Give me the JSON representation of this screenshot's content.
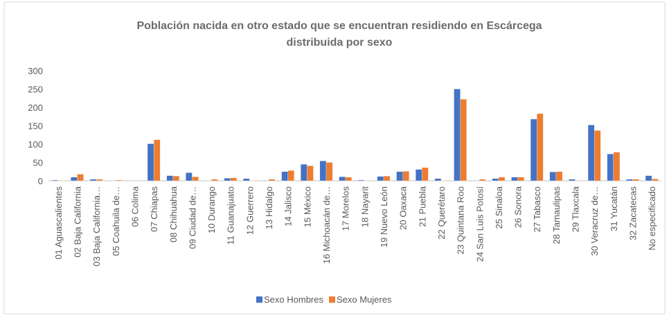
{
  "chart_data": {
    "type": "bar",
    "title": [
      "Población nacida en otro estado que se encuentran residiendo en Escárcega",
      "distribuida por sexo"
    ],
    "categories": [
      "01 Aguascalientes",
      "02 Baja California",
      "03 Baja California…",
      "05 Coahuila de…",
      "06 Colima",
      "07 Chiapas",
      "08 Chihuahua",
      "09 Ciudad de…",
      "10 Durango",
      "11 Guanajuato",
      "12 Guerrero",
      "13 Hidalgo",
      "14 Jalisco",
      "15 México",
      "16 Michoacán de…",
      "17 Morelos",
      "18 Nayarit",
      "19 Nuevo León",
      "20 Oaxaca",
      "21 Puebla",
      "22 Querétaro",
      "23 Quintana Roo",
      "24 San Luis Potosí",
      "25 Sinaloa",
      "26 Sonora",
      "27 Tabasco",
      "28 Tamaulipas",
      "29 Tlaxcala",
      "30 Veracruz de…",
      "31 Yucatán",
      "32 Zacatecas",
      "No especificado"
    ],
    "series": [
      {
        "name": "Sexo Hombres",
        "color": "#4472c4",
        "values": [
          2,
          10,
          4,
          1,
          1,
          101,
          14,
          22,
          1,
          7,
          6,
          1,
          25,
          45,
          54,
          11,
          2,
          12,
          25,
          31,
          6,
          250,
          1,
          6,
          10,
          168,
          24,
          4,
          152,
          73,
          4,
          14
        ]
      },
      {
        "name": "Sexo Mujeres",
        "color": "#ed7d31",
        "values": [
          1,
          18,
          4,
          2,
          1,
          112,
          13,
          11,
          4,
          8,
          1,
          4,
          28,
          41,
          50,
          10,
          1,
          13,
          26,
          36,
          1,
          222,
          4,
          10,
          10,
          183,
          25,
          1,
          137,
          78,
          4,
          5
        ]
      }
    ],
    "ylim": [
      0,
      300
    ],
    "yticks": [
      0,
      50,
      100,
      150,
      200,
      250,
      300
    ],
    "grid": false,
    "legend": "bottom"
  }
}
